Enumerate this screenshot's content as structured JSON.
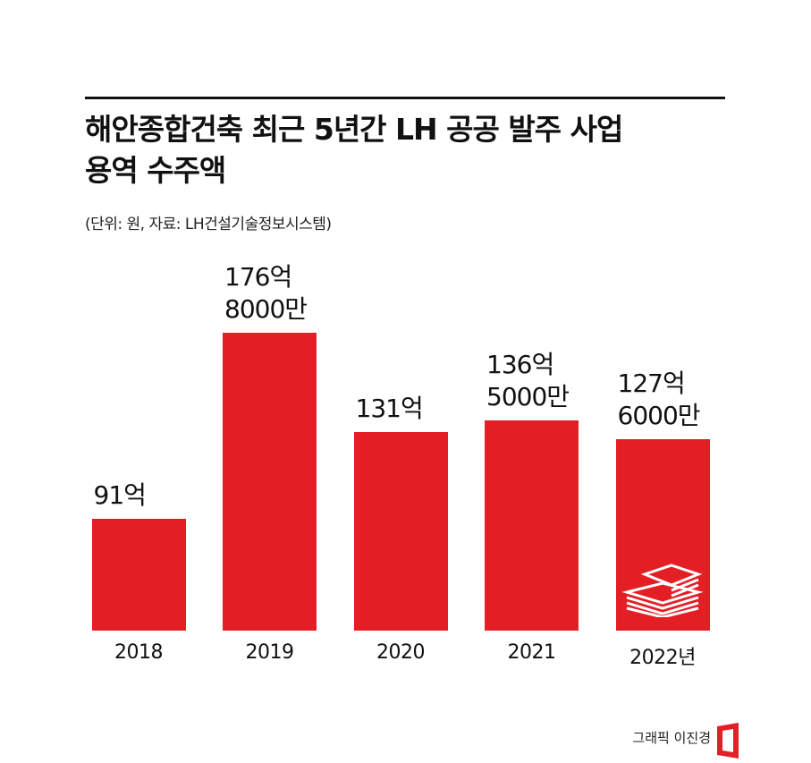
{
  "chart_data": {
    "type": "bar",
    "title": "해안종합건축 최근 5년간 LH 공공 발주 사업\n용역 수주액",
    "subtitle": "(단위: 원, 자료: LH건설기술정보시스템)",
    "categories": [
      "2018",
      "2019",
      "2020",
      "2021",
      "2022년"
    ],
    "values": [
      91,
      176.8,
      131,
      136.5,
      127.6
    ],
    "value_labels": [
      "91억",
      "176억\n8000만",
      "131억",
      "136억\n5000만",
      "127억\n6000만"
    ],
    "color": "#e31e25",
    "ylim": [
      39.4,
      190
    ]
  },
  "credit": "그래픽 이진경"
}
